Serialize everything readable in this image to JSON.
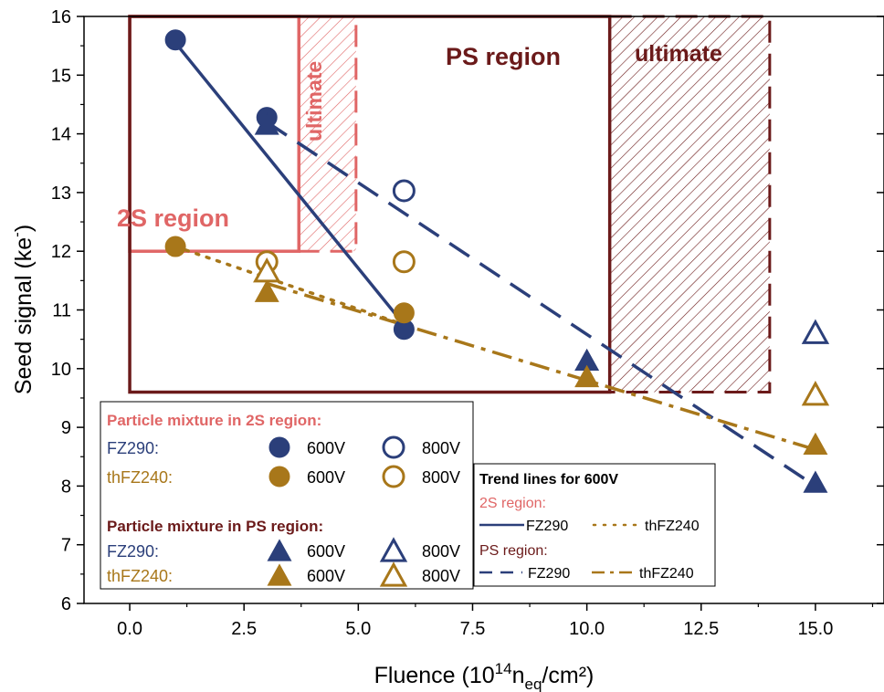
{
  "colors": {
    "navy": "#2b3f7a",
    "gold": "#a8771a",
    "pink": "#e06666",
    "maroon": "#6b1a1a"
  },
  "chart_data": {
    "type": "scatter",
    "xlabel": "Fluence (10",
    "xlabel_sup": "14",
    "xlabel_mid": "n",
    "xlabel_sub": "eq",
    "xlabel_end": "/cm²)",
    "ylabel": "Seed signal (ke",
    "ylabel_sup": "-",
    "ylabel_end": ")",
    "xlim": [
      -1,
      16.5
    ],
    "ylim": [
      6,
      16
    ],
    "xticks": [
      "0.0",
      "2.5",
      "5.0",
      "7.5",
      "10.0",
      "12.5",
      "15.0"
    ],
    "xtick_values": [
      0,
      2.5,
      5,
      7.5,
      10,
      12.5,
      15
    ],
    "yticks": [
      "6",
      "7",
      "8",
      "9",
      "10",
      "11",
      "12",
      "13",
      "14",
      "15",
      "16"
    ],
    "ytick_values": [
      6,
      7,
      8,
      9,
      10,
      11,
      12,
      13,
      14,
      15,
      16
    ],
    "regions": [
      {
        "name": "2S region",
        "x": [
          0,
          3.7
        ],
        "y": [
          12,
          16
        ],
        "color": "pink"
      },
      {
        "name": "ultimate",
        "x": [
          3.7,
          4.95
        ],
        "y": [
          12,
          16
        ],
        "color": "pink",
        "hatched": true
      },
      {
        "name": "PS region",
        "x": [
          0,
          10.5
        ],
        "y": [
          9.6,
          16
        ],
        "color": "maroon"
      },
      {
        "name": "ultimate",
        "x": [
          10.5,
          14
        ],
        "y": [
          9.6,
          16
        ],
        "color": "maroon",
        "hatched": true
      }
    ],
    "series": [
      {
        "name": "FZ290 600V 2S",
        "marker": "circle-filled",
        "color": "navy",
        "x": [
          1,
          3,
          6
        ],
        "y": [
          15.6,
          14.28,
          10.67
        ]
      },
      {
        "name": "FZ290 800V 2S",
        "marker": "circle-open",
        "color": "navy",
        "x": [
          6
        ],
        "y": [
          13.03
        ]
      },
      {
        "name": "thFZ240 600V 2S",
        "marker": "circle-filled",
        "color": "gold",
        "x": [
          1,
          6
        ],
        "y": [
          12.08,
          10.95
        ]
      },
      {
        "name": "thFZ240 800V 2S",
        "marker": "circle-open",
        "color": "gold",
        "x": [
          3,
          6
        ],
        "y": [
          11.82,
          11.82
        ]
      },
      {
        "name": "FZ290 600V PS",
        "marker": "triangle-filled",
        "color": "navy",
        "x": [
          3,
          10,
          15
        ],
        "y": [
          14.15,
          10.13,
          8.05
        ]
      },
      {
        "name": "FZ290 800V PS",
        "marker": "triangle-open",
        "color": "navy",
        "x": [
          15
        ],
        "y": [
          10.6
        ]
      },
      {
        "name": "thFZ240 600V PS",
        "marker": "triangle-filled",
        "color": "gold",
        "x": [
          3,
          10,
          15
        ],
        "y": [
          11.3,
          9.85,
          8.7
        ]
      },
      {
        "name": "thFZ240 800V PS",
        "marker": "triangle-open",
        "color": "gold",
        "x": [
          3,
          15
        ],
        "y": [
          11.65,
          9.55
        ]
      }
    ],
    "trend_lines": [
      {
        "name": "FZ290 2S",
        "style": "solid",
        "color": "navy",
        "x": [
          1,
          6
        ],
        "y": [
          15.55,
          10.75
        ]
      },
      {
        "name": "thFZ240 2S",
        "style": "dot",
        "color": "gold",
        "x": [
          1,
          6
        ],
        "y": [
          12.08,
          10.75
        ]
      },
      {
        "name": "FZ290 PS",
        "style": "dash",
        "color": "navy",
        "x": [
          3,
          15
        ],
        "y": [
          14.2,
          8.0
        ]
      },
      {
        "name": "thFZ240 PS",
        "style": "dashdot",
        "color": "gold",
        "x": [
          3,
          15
        ],
        "y": [
          11.45,
          8.62
        ]
      }
    ],
    "legend1": {
      "title_2s": "Particle mixture in 2S region:",
      "title_ps": "Particle mixture in PS region:",
      "fz": "FZ290:",
      "th": "thFZ240:",
      "v600": "600V",
      "v800": "800V"
    },
    "legend2": {
      "title": "Trend lines for 600V",
      "s2": "2S region:",
      "ps": "PS region:",
      "fz": "FZ290",
      "th": "thFZ240"
    }
  }
}
